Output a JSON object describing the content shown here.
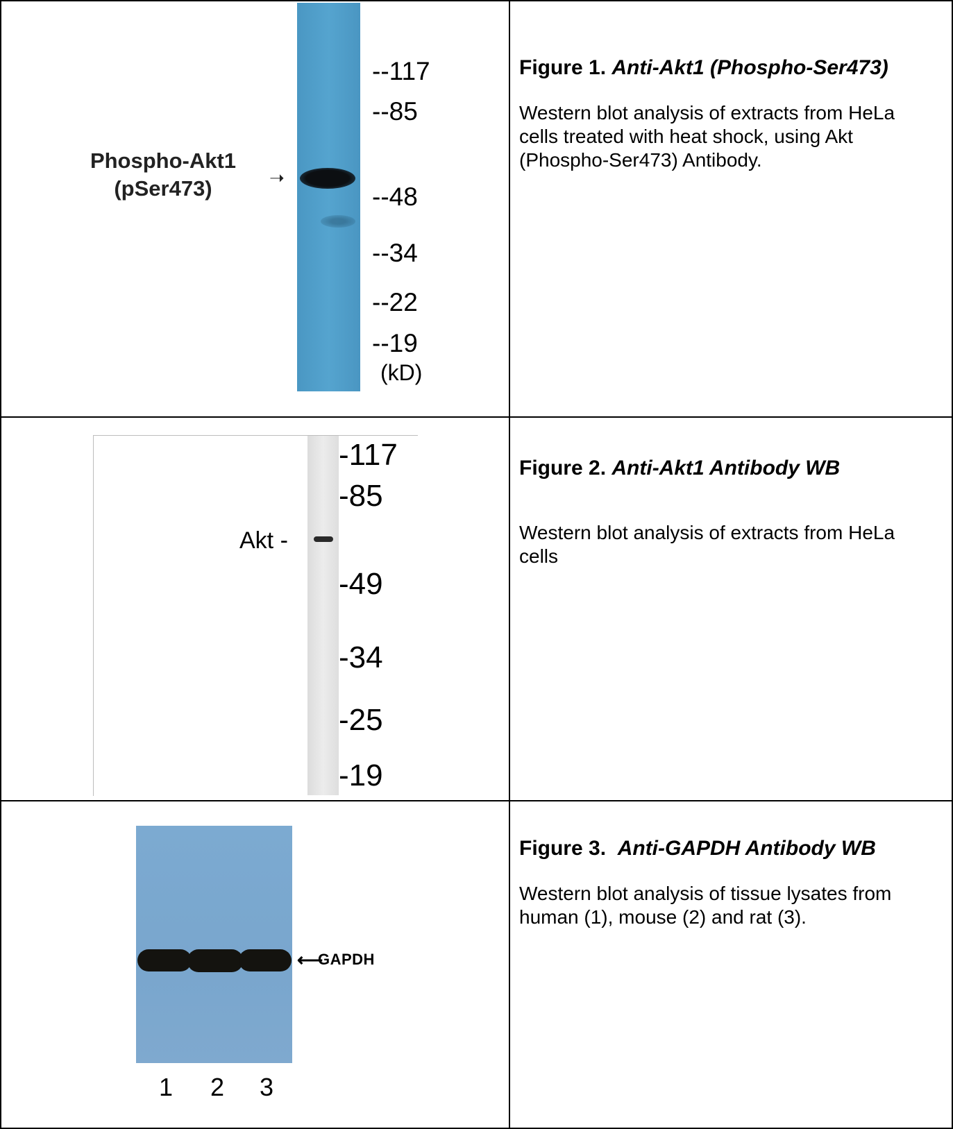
{
  "figures": [
    {
      "caption_prefix": "Figure 1.",
      "caption_title": "Anti-Akt1 (Phospho-Ser473)",
      "caption_body": "Western blot analysis of extracts from HeLa cells treated with heat shock, using Akt (Phospho-Ser473) Antibody.",
      "band_label_line1": "Phospho-Akt1",
      "band_label_line2": "(pSer473)",
      "markers": [
        "--117",
        "--85",
        "--48",
        "--34",
        "--22",
        "--19"
      ],
      "unit": "(kD)",
      "colors": {
        "membrane": "#4f9ec9",
        "band": "#101418"
      }
    },
    {
      "caption_prefix": "Figure 2.",
      "caption_title": "Anti-Akt1 Antibody WB",
      "caption_body": "Western blot analysis of extracts from HeLa cells",
      "band_label": "Akt -",
      "markers": [
        "-117",
        "-85",
        "-49",
        "-34",
        "-25",
        "-19"
      ],
      "colors": {
        "lane": "#e6e6e6",
        "band": "#2a2a2a"
      }
    },
    {
      "caption_prefix": "Figure 3.",
      "caption_title": "Anti-GAPDH Antibody WB",
      "caption_body": "Western blot analysis of tissue lysates from human (1), mouse (2) and rat (3).",
      "band_label": "GAPDH",
      "lanes": [
        "1",
        "2",
        "3"
      ],
      "colors": {
        "membrane": "#7aa7cf",
        "band": "#14130f"
      }
    }
  ]
}
